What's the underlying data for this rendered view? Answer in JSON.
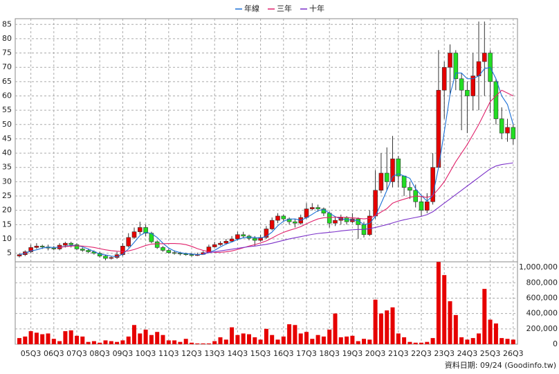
{
  "chart_data": {
    "type": "candlestick",
    "legend_position": "top",
    "grid": true,
    "up_color": "#e60000",
    "down_color": "#22dd22",
    "categories": [
      null,
      null,
      "05Q3",
      null,
      null,
      null,
      "06Q3",
      null,
      null,
      null,
      "07Q3",
      null,
      null,
      null,
      "08Q3",
      null,
      null,
      null,
      "09Q3",
      null,
      null,
      null,
      "10Q3",
      null,
      null,
      null,
      "11Q3",
      null,
      null,
      null,
      "12Q3",
      null,
      null,
      null,
      "13Q3",
      null,
      null,
      null,
      "14Q3",
      null,
      null,
      null,
      "15Q3",
      null,
      null,
      null,
      "16Q3",
      null,
      null,
      null,
      "17Q3",
      null,
      null,
      null,
      "18Q3",
      null,
      null,
      null,
      "19Q3",
      null,
      null,
      null,
      "20Q3",
      null,
      null,
      null,
      "21Q3",
      null,
      null,
      null,
      "22Q3",
      null,
      null,
      null,
      "23Q3",
      null,
      null,
      null,
      "24Q3",
      null,
      null,
      null,
      "25Q3",
      null,
      null,
      null,
      "26Q3"
    ],
    "open": [
      4.0,
      4.5,
      5.5,
      7,
      7.5,
      7.2,
      6.8,
      6.5,
      7.8,
      8.5,
      8,
      6.5,
      6,
      5.5,
      5,
      4,
      3.2,
      3.5,
      4.5,
      7.5,
      10.5,
      12.5,
      14,
      12,
      9,
      7,
      6,
      5.2,
      5,
      4.8,
      4.5,
      4.2,
      4.6,
      5.2,
      7.2,
      8,
      8.5,
      9.2,
      10,
      11.5,
      11,
      10.2,
      9.5,
      10.5,
      13.5,
      16.5,
      18,
      17,
      16,
      15.5,
      17.5,
      20.5,
      21,
      20.5,
      19,
      15.5,
      16.5,
      17.5,
      16,
      17,
      15,
      11.5,
      18,
      27,
      33,
      30,
      38,
      32,
      28,
      27,
      23,
      20,
      23,
      35,
      62,
      70,
      75,
      66,
      62,
      60,
      67,
      72,
      75,
      65,
      52,
      47,
      49
    ],
    "high": [
      5,
      6,
      8,
      8.5,
      8,
      8,
      7.5,
      8.5,
      9,
      9,
      8.5,
      7,
      6.5,
      6,
      5.5,
      4.5,
      4,
      5.5,
      8.5,
      12,
      14,
      16,
      15,
      12.5,
      9.5,
      7.5,
      6.5,
      6,
      5.5,
      5.2,
      5,
      5.2,
      5.8,
      8,
      9,
      9.2,
      10,
      11,
      12.5,
      12.5,
      11.5,
      11,
      11.5,
      14.5,
      17.5,
      19,
      18.5,
      17.5,
      17,
      18.5,
      22.5,
      22.5,
      22,
      21,
      19.5,
      17.5,
      18.5,
      18,
      19,
      17.5,
      16,
      20,
      34,
      40,
      42,
      46,
      39,
      32,
      30,
      29,
      25,
      26,
      40,
      76,
      72,
      78,
      76,
      68,
      65,
      75,
      86,
      86,
      76,
      66,
      56,
      52,
      50
    ],
    "low": [
      3.5,
      4,
      5,
      6.5,
      6.5,
      6,
      6,
      6,
      7,
      7,
      6,
      5.5,
      5,
      4.5,
      3.5,
      2.5,
      2.8,
      3,
      4,
      7,
      10,
      11.5,
      11,
      8.5,
      6.5,
      5.5,
      4.8,
      4.5,
      4.2,
      4.1,
      3.8,
      4,
      4.4,
      5,
      7,
      7.6,
      8,
      9,
      9.5,
      10.2,
      9.5,
      7.5,
      9,
      10,
      13,
      15.5,
      16,
      15,
      14,
      15,
      17,
      20,
      19.5,
      18,
      14,
      14.5,
      15,
      15,
      15.5,
      10,
      10.5,
      11,
      17,
      26,
      27,
      28,
      28,
      25,
      24,
      21,
      18,
      19,
      22,
      35,
      52,
      60,
      62,
      48,
      47,
      55,
      55,
      60,
      54,
      50,
      45,
      44,
      43
    ],
    "close": [
      4.5,
      5.5,
      7,
      7.5,
      7.2,
      6.8,
      6.5,
      7.8,
      8.5,
      8,
      6.5,
      6,
      5.5,
      5,
      4,
      3.2,
      3.5,
      4.5,
      7.5,
      10.5,
      12.5,
      14,
      12,
      9,
      7,
      6,
      5.2,
      5,
      4.8,
      4.5,
      4.2,
      4.6,
      5.2,
      7.2,
      8,
      8.5,
      9.2,
      10,
      11.5,
      11,
      10.2,
      9.5,
      10.5,
      13.5,
      16.5,
      18,
      17,
      16,
      15.5,
      17.5,
      20.5,
      21,
      20.5,
      19,
      15.5,
      16.5,
      17.5,
      16,
      17,
      15,
      11.5,
      18,
      27,
      33,
      30,
      38,
      32,
      28,
      27,
      23,
      20,
      23,
      35,
      62,
      70,
      75,
      66,
      62,
      60,
      67,
      72,
      75,
      65,
      52,
      47,
      49,
      45
    ],
    "series": [
      {
        "name": "年線",
        "color": "#1a6fd6",
        "values": [
          4.5,
          5,
          5.8,
          6.2,
          6.8,
          7.1,
          7,
          7.1,
          7.4,
          7.7,
          7.7,
          7.2,
          6.5,
          5.6,
          4.7,
          4.4,
          4,
          3.8,
          4.7,
          6.5,
          8.8,
          11.2,
          12.3,
          11.9,
          10.5,
          8.5,
          6.8,
          5.8,
          5.2,
          4.9,
          4.7,
          4.5,
          4.6,
          5.3,
          6,
          7.2,
          8.2,
          8.9,
          9.8,
          10.4,
          10.6,
          10.5,
          10.3,
          10.9,
          12.4,
          14.6,
          16.2,
          16.9,
          17,
          16.5,
          17.4,
          18.6,
          19.9,
          20.3,
          19,
          17.8,
          17,
          16.8,
          16.6,
          16.4,
          15,
          15.4,
          17.9,
          22.4,
          27,
          31.8,
          32.8,
          32,
          31.2,
          27.5,
          25.2,
          23.2,
          25.2,
          35,
          47.5,
          60.5,
          68,
          68,
          66,
          66,
          67,
          69.5,
          70,
          66,
          60,
          57,
          50
        ]
      },
      {
        "name": "三年",
        "color": "#e0206a",
        "values": [
          null,
          null,
          null,
          null,
          null,
          null,
          null,
          7.0,
          7.3,
          7.5,
          7.6,
          7.5,
          7.3,
          7.0,
          6.6,
          6.2,
          5.9,
          5.7,
          5.6,
          5.8,
          6.3,
          7.0,
          7.7,
          8.2,
          8.3,
          8.3,
          8.4,
          8.4,
          8.3,
          8.0,
          7.4,
          6.6,
          6.0,
          5.5,
          5.3,
          5.3,
          5.5,
          5.8,
          6.3,
          6.9,
          7.5,
          8,
          8.6,
          9.3,
          10.3,
          11.4,
          12.3,
          13.0,
          13.6,
          14.3,
          15.3,
          16.2,
          17,
          17.4,
          17.5,
          17.6,
          17.6,
          17.5,
          17.4,
          17.2,
          17,
          17.2,
          18.2,
          19.4,
          20.6,
          22.5,
          23.3,
          23.9,
          24.5,
          25,
          24.8,
          24.5,
          25.2,
          27.5,
          30,
          33.5,
          37,
          40,
          43,
          46.5,
          50,
          54,
          58,
          60,
          62,
          61,
          60
        ]
      },
      {
        "name": "十年",
        "color": "#7a2fc8",
        "values": [
          null,
          null,
          null,
          null,
          null,
          null,
          null,
          null,
          null,
          null,
          null,
          null,
          null,
          null,
          null,
          null,
          null,
          null,
          null,
          null,
          null,
          null,
          null,
          null,
          null,
          null,
          null,
          null,
          null,
          null,
          null,
          null,
          5,
          5.2,
          5.5,
          5.8,
          6.1,
          6.4,
          6.7,
          7.0,
          7.3,
          7.5,
          7.8,
          8.1,
          8.5,
          9,
          9.5,
          10,
          10.4,
          10.8,
          11.2,
          11.6,
          11.9,
          12.1,
          12.3,
          12.5,
          12.8,
          13,
          13.2,
          13.3,
          13.3,
          13.6,
          14,
          14.5,
          15,
          15.6,
          16.2,
          16.7,
          17.1,
          17.5,
          17.9,
          18.5,
          19.5,
          21,
          22.5,
          24,
          25.5,
          27,
          28.5,
          30,
          31.5,
          33,
          34.5,
          35.5,
          36,
          36.3,
          36.6
        ]
      }
    ],
    "ylim": [
      2,
      87
    ],
    "yticks": [
      5,
      10,
      15,
      20,
      25,
      30,
      35,
      40,
      45,
      50,
      55,
      60,
      65,
      70,
      75,
      80,
      85
    ],
    "volume": {
      "color": "#e60000",
      "values": [
        80000,
        100000,
        170000,
        150000,
        130000,
        140000,
        70000,
        40000,
        170000,
        180000,
        110000,
        100000,
        30000,
        40000,
        20000,
        50000,
        40000,
        30000,
        50000,
        100000,
        250000,
        140000,
        190000,
        120000,
        160000,
        120000,
        50000,
        50000,
        30000,
        70000,
        20000,
        10000,
        10000,
        10000,
        40000,
        90000,
        60000,
        220000,
        120000,
        140000,
        130000,
        90000,
        60000,
        200000,
        120000,
        60000,
        100000,
        260000,
        250000,
        140000,
        160000,
        70000,
        120000,
        100000,
        190000,
        400000,
        90000,
        100000,
        110000,
        40000,
        70000,
        60000,
        580000,
        400000,
        440000,
        480000,
        140000,
        90000,
        30000,
        20000,
        20000,
        30000,
        80000,
        1070000,
        900000,
        560000,
        380000,
        90000,
        60000,
        80000,
        140000,
        720000,
        320000,
        270000,
        80000,
        70000,
        60000
      ],
      "ylim": [
        0,
        1100000
      ],
      "yticks": [
        0,
        {
          "value": 200000,
          "label": "200,000"
        },
        {
          "value": 400000,
          "label": "400,000"
        },
        {
          "value": 600000,
          "label": "600,000"
        },
        {
          "value": 800000,
          "label": "800,000"
        },
        {
          "value": 1000000,
          "label": "1,000,000"
        }
      ]
    },
    "footnote": "資料日期: 09/24 (Goodinfo.tw)"
  }
}
